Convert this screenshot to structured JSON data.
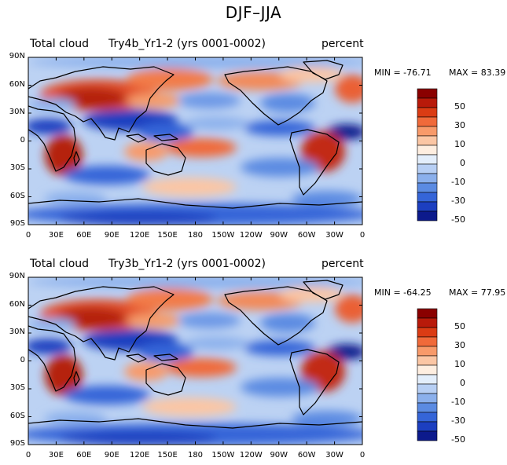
{
  "figure": {
    "title": "DJF–JJA"
  },
  "panels": [
    {
      "variable": "Total cloud",
      "case": "Try4b_Yr1-2 (yrs 0001-0002)",
      "units": "percent",
      "stats": {
        "min_label": "MIN = -76.71",
        "max_label": "MAX =  83.39",
        "min": -76.71,
        "max": 83.39
      }
    },
    {
      "variable": "Total cloud",
      "case": "Try3b_Yr1-2 (yrs 0001-0002)",
      "units": "percent",
      "stats": {
        "min_label": "MIN = -64.25",
        "max_label": "MAX =  77.95",
        "min": -64.25,
        "max": 77.95
      }
    }
  ],
  "axes": {
    "lat_labels": [
      "90N",
      "60N",
      "30N",
      "0",
      "30S",
      "60S",
      "90S"
    ],
    "lat_values": [
      90,
      60,
      30,
      0,
      -30,
      -60,
      -90
    ],
    "lon_labels": [
      "0",
      "30E",
      "60E",
      "90E",
      "120E",
      "150E",
      "180",
      "150W",
      "120W",
      "90W",
      "60W",
      "30W",
      "0"
    ],
    "lon_values": [
      0,
      30,
      60,
      90,
      120,
      150,
      180,
      210,
      240,
      270,
      300,
      330,
      360
    ]
  },
  "colorbar": {
    "labels": [
      "50",
      "30",
      "10",
      "0",
      "-10",
      "-30",
      "-50"
    ],
    "colors": [
      "#8a0000",
      "#b81a0a",
      "#db3c14",
      "#f06a3a",
      "#f89a6a",
      "#fbc6a4",
      "#feeee0",
      "#e3eefb",
      "#b7cff4",
      "#8bb0ec",
      "#5b8be2",
      "#3565d8",
      "#1c3fc0",
      "#0c1a8c"
    ]
  },
  "colors": {
    "coast": "#000000",
    "frame": "#000000"
  }
}
